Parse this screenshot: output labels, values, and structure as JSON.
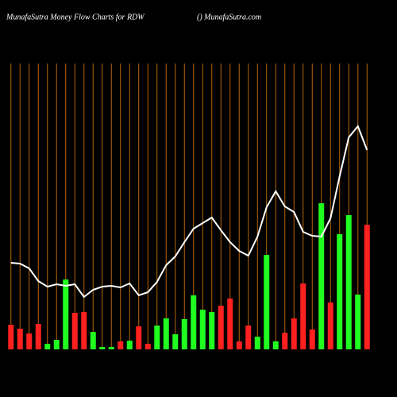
{
  "chart_data": {
    "type": "bar-line",
    "title": "MunafaSutra  Money Flow  Charts for RDW",
    "subtitle": "() MunafaSutra.com",
    "categories": [
      null,
      null,
      null,
      null,
      null,
      null,
      null,
      null,
      null,
      null,
      null,
      null,
      null,
      null,
      null,
      null,
      null,
      null,
      null,
      null,
      null,
      null,
      null,
      null,
      null,
      null,
      null,
      null,
      null,
      null,
      null,
      null,
      null,
      null,
      null,
      null,
      null,
      null,
      null,
      null
    ],
    "ylim": [
      0,
      360
    ],
    "grid_color": "#b8660b",
    "series": [
      {
        "kind": "bar",
        "values": [
          31,
          26,
          20,
          32,
          7,
          12,
          88,
          46,
          47,
          22,
          3,
          3,
          10,
          11,
          29,
          7,
          30,
          39,
          19,
          38,
          68,
          50,
          47,
          55,
          64,
          10,
          30,
          16,
          119,
          10,
          21,
          39,
          83,
          25,
          184,
          59,
          145,
          169,
          69,
          157
        ],
        "colors": [
          "#ff2020",
          "#ff2020",
          "#ff2020",
          "#ff2020",
          "#20ff20",
          "#20ff20",
          "#20ff20",
          "#ff2020",
          "#ff2020",
          "#20ff20",
          "#20ff20",
          "#20ff20",
          "#ff2020",
          "#20ff20",
          "#ff2020",
          "#ff2020",
          "#20ff20",
          "#20ff20",
          "#20ff20",
          "#20ff20",
          "#20ff20",
          "#20ff20",
          "#20ff20",
          "#ff2020",
          "#ff2020",
          "#ff2020",
          "#ff2020",
          "#20ff20",
          "#20ff20",
          "#20ff20",
          "#ff2020",
          "#ff2020",
          "#ff2020",
          "#ff2020",
          "#20ff20",
          "#ff2020",
          "#20ff20",
          "#20ff20",
          "#20ff20",
          "#ff2020"
        ]
      },
      {
        "kind": "line",
        "color": "#ffffff",
        "values": [
          109,
          108,
          102,
          86,
          79,
          82,
          80,
          82,
          66,
          75,
          79,
          80,
          78,
          83,
          68,
          72,
          85,
          106,
          117,
          135,
          152,
          159,
          166,
          150,
          135,
          124,
          118,
          142,
          179,
          199,
          180,
          173,
          148,
          143,
          142,
          165,
          218,
          267,
          281,
          251
        ]
      }
    ]
  }
}
